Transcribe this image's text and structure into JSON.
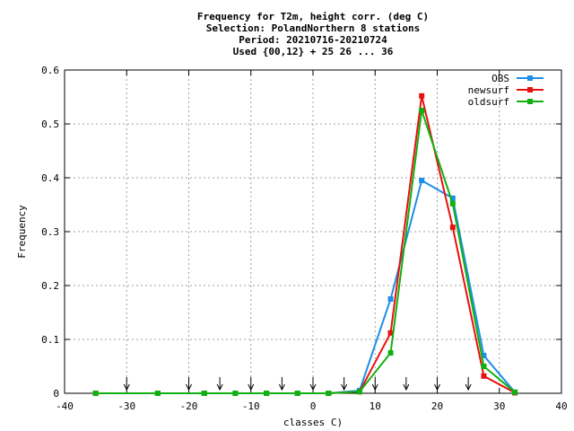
{
  "chart_data": {
    "type": "line",
    "title_lines": [
      "Frequency  for T2m, height corr. (deg C)",
      "Selection: PolandNorthern      8 stations",
      "Period: 20210716-20210724",
      "Used {00,12} + 25 26 ... 36"
    ],
    "xlabel": "classes C)",
    "ylabel": "Frequency",
    "xlim": [
      -40,
      40
    ],
    "ylim": [
      0,
      0.6
    ],
    "xticks": [
      -40,
      -30,
      -20,
      -10,
      0,
      10,
      20,
      30,
      40
    ],
    "yticks": [
      0,
      0.1,
      0.2,
      0.3,
      0.4,
      0.5,
      0.6
    ],
    "ytick_labels": [
      "0",
      "0.1",
      "0.2",
      "0.3",
      "0.4",
      "0.5",
      "0.6"
    ],
    "grid": true,
    "legend_position": "top-right",
    "x": [
      -35,
      -25,
      -17.5,
      -12.5,
      -7.5,
      -2.5,
      2.5,
      7.5,
      12.5,
      17.5,
      22.5,
      27.5,
      32.5
    ],
    "series": [
      {
        "name": "OBS",
        "color": "#1f8ee6",
        "values": [
          0,
          0,
          0,
          0,
          0,
          0,
          0,
          0.005,
          0.175,
          0.395,
          0.362,
          0.07,
          0.002
        ]
      },
      {
        "name": "newsurf",
        "color": "#e81010",
        "values": [
          0,
          0,
          0,
          0,
          0,
          0,
          0,
          0.003,
          0.112,
          0.552,
          0.308,
          0.032,
          0.001
        ]
      },
      {
        "name": "oldsurf",
        "color": "#10b010",
        "values": [
          0,
          0,
          0,
          0,
          0,
          0,
          0,
          0.003,
          0.075,
          0.525,
          0.352,
          0.05,
          0.002
        ]
      }
    ],
    "class_limit_arrows": [
      -30,
      -20,
      -15,
      -10,
      -5,
      0,
      5,
      10,
      15,
      20,
      25
    ]
  }
}
